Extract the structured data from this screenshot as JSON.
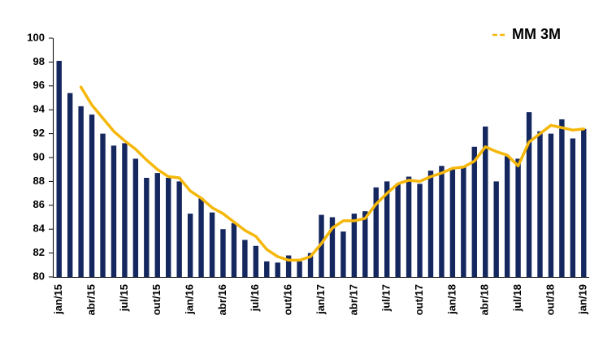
{
  "chart_data": {
    "type": "bar",
    "categories": [
      "jan/15",
      null,
      null,
      "abr/15",
      null,
      null,
      "jul/15",
      null,
      null,
      "out/15",
      null,
      null,
      "jan/16",
      null,
      null,
      "abr/16",
      null,
      null,
      "jul/16",
      null,
      null,
      "out/16",
      null,
      null,
      "jan/17",
      null,
      null,
      "abr/17",
      null,
      null,
      "jul/17",
      null,
      null,
      "out/17",
      null,
      null,
      "jan/18",
      null,
      null,
      "abr/18",
      null,
      null,
      "jul/18",
      null,
      null,
      "out/18",
      null,
      null,
      "jan/19"
    ],
    "series": [
      {
        "type": "bar",
        "color": "#14275e",
        "values": [
          98.1,
          95.4,
          94.3,
          93.6,
          92.0,
          91.0,
          91.2,
          89.9,
          88.3,
          88.7,
          88.3,
          88.0,
          85.3,
          86.6,
          85.4,
          84.0,
          84.5,
          83.1,
          82.6,
          81.3,
          81.2,
          81.8,
          81.3,
          82.0,
          85.2,
          85.0,
          83.8,
          85.3,
          85.5,
          87.5,
          88.0,
          87.8,
          88.4,
          87.8,
          88.9,
          89.3,
          89.0,
          89.2,
          90.9,
          92.6,
          88.0,
          90.1,
          89.9,
          93.8,
          92.2,
          92.0,
          93.2,
          91.6,
          92.4
        ]
      },
      {
        "type": "line",
        "name": "MM 3M",
        "color": "#f5b70a",
        "values": [
          null,
          null,
          95.9,
          94.4,
          93.3,
          92.2,
          91.4,
          90.7,
          89.8,
          89.0,
          88.4,
          88.3,
          87.2,
          86.6,
          85.8,
          85.3,
          84.6,
          83.9,
          83.4,
          82.3,
          81.7,
          81.4,
          81.4,
          81.7,
          82.8,
          84.1,
          84.7,
          84.7,
          84.9,
          86.1,
          87.0,
          87.8,
          88.1,
          88.0,
          88.4,
          88.7,
          89.1,
          89.2,
          89.7,
          90.9,
          90.5,
          90.2,
          89.3,
          91.3,
          92.0,
          92.7,
          92.5,
          92.3,
          92.4
        ]
      }
    ],
    "ylim": [
      80,
      100
    ],
    "yticks": [
      80,
      82,
      84,
      86,
      88,
      90,
      92,
      94,
      96,
      98,
      100
    ],
    "grid": false,
    "legend": "top-right"
  }
}
